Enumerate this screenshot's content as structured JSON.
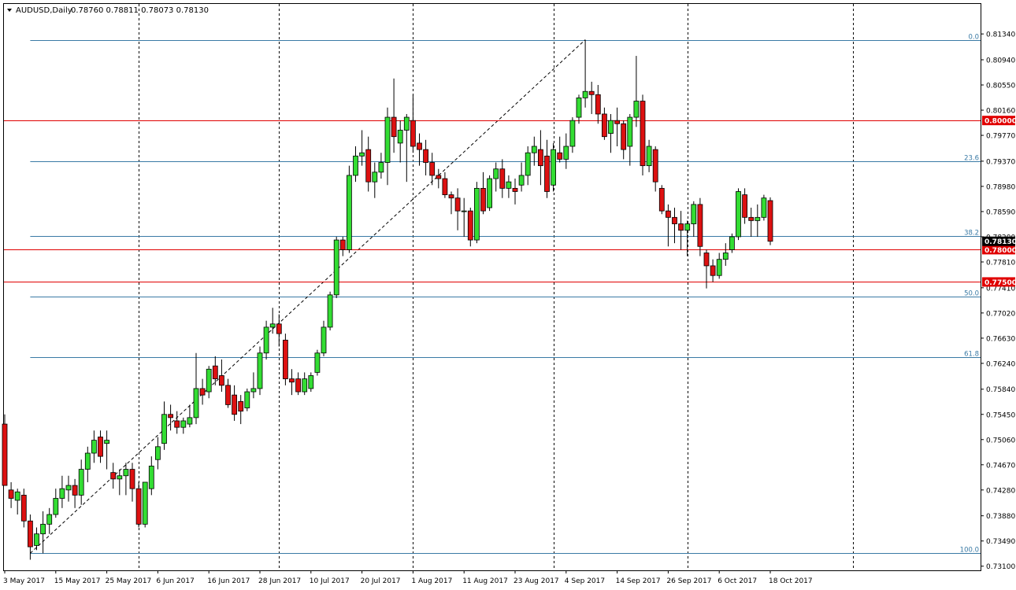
{
  "header": {
    "symbol": "AUDUSD,Daily",
    "ohlc": "0.78760 0.78811 0.78073 0.78130"
  },
  "colors": {
    "bull": "#33dd33",
    "bear": "#dd1111",
    "fib": "#3a7aa5",
    "level": "#e00000",
    "price_tag": "#000000"
  },
  "chart_data": {
    "type": "candlestick",
    "ylim": [
      0.7306,
      0.815
    ],
    "y_ticks": [
      "0.81340",
      "0.80940",
      "0.80550",
      "0.80160",
      "0.79770",
      "0.79370",
      "0.78980",
      "0.78590",
      "0.78200",
      "0.77810",
      "0.77410",
      "0.77020",
      "0.76630",
      "0.76240",
      "0.75840",
      "0.75450",
      "0.75060",
      "0.74670",
      "0.74280",
      "0.73880",
      "0.73490",
      "0.73100"
    ],
    "x_ticks": [
      "3 May 2017",
      "15 May 2017",
      "25 May 2017",
      "6 Jun 2017",
      "16 Jun 2017",
      "28 Jun 2017",
      "10 Jul 2017",
      "20 Jul 2017",
      "1 Aug 2017",
      "11 Aug 2017",
      "23 Aug 2017",
      "4 Sep 2017",
      "14 Sep 2017",
      "26 Sep 2017",
      "6 Oct 2017",
      "18 Oct 2017"
    ],
    "x_tick_bar_index": [
      0,
      8,
      16,
      24,
      32,
      40,
      48,
      56,
      64,
      72,
      80,
      88,
      96,
      104,
      112,
      120
    ],
    "separator_bar_index": [
      21,
      43,
      64,
      86,
      107,
      133
    ],
    "bar_count": 160,
    "horizontal_levels": [
      {
        "label": "0.80000",
        "price": 0.8
      },
      {
        "label": "0.78000",
        "price": 0.78
      },
      {
        "label": "0.77500",
        "price": 0.775
      }
    ],
    "current_price": {
      "label": "0.78130",
      "price": 0.7813
    },
    "fibonacci": {
      "high": 0.8125,
      "low": 0.733,
      "levels": [
        {
          "label": "0.0",
          "price": 0.8125
        },
        {
          "label": "23.6",
          "price": 0.79374
        },
        {
          "label": "38.2",
          "price": 0.78214
        },
        {
          "label": "50.0",
          "price": 0.77275
        },
        {
          "label": "61.8",
          "price": 0.76337
        },
        {
          "label": "100.0",
          "price": 0.733
        }
      ],
      "trendline": {
        "from_bar": 4,
        "to_bar": 91
      }
    },
    "candles": [
      [
        0.753,
        0.7545,
        0.744,
        0.7435
      ],
      [
        0.7428,
        0.744,
        0.74,
        0.7415
      ],
      [
        0.7412,
        0.743,
        0.739,
        0.7425
      ],
      [
        0.742,
        0.743,
        0.737,
        0.738
      ],
      [
        0.738,
        0.739,
        0.732,
        0.734
      ],
      [
        0.7342,
        0.737,
        0.7335,
        0.736
      ],
      [
        0.736,
        0.7395,
        0.733,
        0.7375
      ],
      [
        0.7375,
        0.74,
        0.736,
        0.739
      ],
      [
        0.739,
        0.743,
        0.7385,
        0.7415
      ],
      [
        0.7415,
        0.745,
        0.74,
        0.743
      ],
      [
        0.7428,
        0.745,
        0.741,
        0.7435
      ],
      [
        0.7435,
        0.7445,
        0.74,
        0.742
      ],
      [
        0.742,
        0.7475,
        0.7405,
        0.746
      ],
      [
        0.746,
        0.7495,
        0.744,
        0.7485
      ],
      [
        0.7485,
        0.752,
        0.747,
        0.7505
      ],
      [
        0.751,
        0.752,
        0.747,
        0.748
      ],
      [
        0.75,
        0.752,
        0.746,
        0.7505
      ],
      [
        0.7455,
        0.747,
        0.743,
        0.7445
      ],
      [
        0.7445,
        0.746,
        0.742,
        0.745
      ],
      [
        0.745,
        0.747,
        0.742,
        0.746
      ],
      [
        0.746,
        0.747,
        0.741,
        0.743
      ],
      [
        0.743,
        0.744,
        0.737,
        0.7375
      ],
      [
        0.7375,
        0.744,
        0.737,
        0.744
      ],
      [
        0.743,
        0.748,
        0.742,
        0.7465
      ],
      [
        0.7475,
        0.751,
        0.746,
        0.7495
      ],
      [
        0.75,
        0.7565,
        0.749,
        0.7545
      ],
      [
        0.7545,
        0.756,
        0.752,
        0.754
      ],
      [
        0.7535,
        0.755,
        0.7515,
        0.7525
      ],
      [
        0.7525,
        0.754,
        0.7515,
        0.7535
      ],
      [
        0.753,
        0.756,
        0.7525,
        0.754
      ],
      [
        0.754,
        0.764,
        0.753,
        0.7585
      ],
      [
        0.7585,
        0.76,
        0.756,
        0.7575
      ],
      [
        0.758,
        0.762,
        0.757,
        0.7615
      ],
      [
        0.762,
        0.7635,
        0.759,
        0.76
      ],
      [
        0.7605,
        0.763,
        0.758,
        0.759
      ],
      [
        0.759,
        0.76,
        0.7555,
        0.756
      ],
      [
        0.7575,
        0.759,
        0.7535,
        0.7545
      ],
      [
        0.7565,
        0.7575,
        0.753,
        0.755
      ],
      [
        0.7555,
        0.7585,
        0.755,
        0.758
      ],
      [
        0.758,
        0.761,
        0.757,
        0.7585
      ],
      [
        0.7585,
        0.765,
        0.7575,
        0.764
      ],
      [
        0.764,
        0.769,
        0.763,
        0.768
      ],
      [
        0.768,
        0.771,
        0.767,
        0.7685
      ],
      [
        0.7685,
        0.77,
        0.765,
        0.767
      ],
      [
        0.766,
        0.767,
        0.759,
        0.76
      ],
      [
        0.76,
        0.7615,
        0.7575,
        0.7595
      ],
      [
        0.76,
        0.761,
        0.7575,
        0.758
      ],
      [
        0.758,
        0.761,
        0.7575,
        0.76
      ],
      [
        0.7585,
        0.761,
        0.758,
        0.7605
      ],
      [
        0.761,
        0.7645,
        0.7605,
        0.764
      ],
      [
        0.764,
        0.769,
        0.7635,
        0.768
      ],
      [
        0.768,
        0.7735,
        0.7675,
        0.773
      ],
      [
        0.773,
        0.782,
        0.7725,
        0.7815
      ],
      [
        0.7815,
        0.782,
        0.779,
        0.78
      ],
      [
        0.78,
        0.793,
        0.7795,
        0.7915
      ],
      [
        0.7915,
        0.796,
        0.7905,
        0.7945
      ],
      [
        0.7945,
        0.7985,
        0.793,
        0.795
      ],
      [
        0.7955,
        0.7975,
        0.789,
        0.7905
      ],
      [
        0.7905,
        0.7935,
        0.788,
        0.792
      ],
      [
        0.792,
        0.795,
        0.791,
        0.7935
      ],
      [
        0.7935,
        0.802,
        0.79,
        0.8005
      ],
      [
        0.8005,
        0.8065,
        0.795,
        0.7975
      ],
      [
        0.7965,
        0.8,
        0.7935,
        0.7985
      ],
      [
        0.7985,
        0.801,
        0.7905,
        0.8005
      ],
      [
        0.8,
        0.804,
        0.795,
        0.796
      ],
      [
        0.7965,
        0.798,
        0.793,
        0.7955
      ],
      [
        0.7955,
        0.797,
        0.7915,
        0.7935
      ],
      [
        0.7935,
        0.795,
        0.79,
        0.7915
      ],
      [
        0.7915,
        0.7925,
        0.7895,
        0.791
      ],
      [
        0.791,
        0.792,
        0.788,
        0.7885
      ],
      [
        0.7885,
        0.789,
        0.7855,
        0.788
      ],
      [
        0.788,
        0.7895,
        0.783,
        0.786
      ],
      [
        0.786,
        0.788,
        0.782,
        0.786
      ],
      [
        0.786,
        0.7865,
        0.7805,
        0.7815
      ],
      [
        0.7815,
        0.7905,
        0.781,
        0.7895
      ],
      [
        0.7895,
        0.792,
        0.7855,
        0.786
      ],
      [
        0.7865,
        0.7915,
        0.786,
        0.791
      ],
      [
        0.791,
        0.7935,
        0.789,
        0.7925
      ],
      [
        0.7925,
        0.794,
        0.788,
        0.7895
      ],
      [
        0.7895,
        0.7915,
        0.788,
        0.7905
      ],
      [
        0.7895,
        0.791,
        0.787,
        0.789
      ],
      [
        0.79,
        0.7935,
        0.789,
        0.7915
      ],
      [
        0.7915,
        0.796,
        0.79,
        0.795
      ],
      [
        0.795,
        0.7975,
        0.793,
        0.796
      ],
      [
        0.7955,
        0.7985,
        0.79,
        0.793
      ],
      [
        0.7945,
        0.797,
        0.788,
        0.789
      ],
      [
        0.79,
        0.7965,
        0.789,
        0.7955
      ],
      [
        0.795,
        0.7975,
        0.7935,
        0.794
      ],
      [
        0.794,
        0.798,
        0.7925,
        0.796
      ],
      [
        0.796,
        0.8005,
        0.795,
        0.8
      ],
      [
        0.8005,
        0.804,
        0.7995,
        0.8035
      ],
      [
        0.8035,
        0.8125,
        0.802,
        0.8045
      ],
      [
        0.8045,
        0.806,
        0.801,
        0.804
      ],
      [
        0.804,
        0.8055,
        0.7995,
        0.801
      ],
      [
        0.801,
        0.802,
        0.797,
        0.7975
      ],
      [
        0.798,
        0.801,
        0.795,
        0.8
      ],
      [
        0.8,
        0.802,
        0.796,
        0.7995
      ],
      [
        0.7995,
        0.8,
        0.794,
        0.7955
      ],
      [
        0.796,
        0.801,
        0.793,
        0.8005
      ],
      [
        0.8005,
        0.81,
        0.799,
        0.803
      ],
      [
        0.803,
        0.804,
        0.7915,
        0.793
      ],
      [
        0.793,
        0.797,
        0.792,
        0.796
      ],
      [
        0.7955,
        0.796,
        0.789,
        0.7905
      ],
      [
        0.7895,
        0.79,
        0.7855,
        0.786
      ],
      [
        0.786,
        0.787,
        0.7805,
        0.785
      ],
      [
        0.785,
        0.7865,
        0.781,
        0.784
      ],
      [
        0.784,
        0.786,
        0.78,
        0.783
      ],
      [
        0.783,
        0.7845,
        0.779,
        0.784
      ],
      [
        0.784,
        0.7875,
        0.782,
        0.787
      ],
      [
        0.787,
        0.788,
        0.779,
        0.7805
      ],
      [
        0.7795,
        0.78,
        0.774,
        0.7775
      ],
      [
        0.7775,
        0.7785,
        0.775,
        0.776
      ],
      [
        0.776,
        0.7795,
        0.7755,
        0.7785
      ],
      [
        0.7785,
        0.781,
        0.7775,
        0.7795
      ],
      [
        0.78,
        0.7825,
        0.7795,
        0.782
      ],
      [
        0.782,
        0.7895,
        0.7815,
        0.789
      ],
      [
        0.7885,
        0.7895,
        0.784,
        0.785
      ],
      [
        0.785,
        0.7865,
        0.782,
        0.7845
      ],
      [
        0.7845,
        0.787,
        0.782,
        0.785
      ],
      [
        0.785,
        0.7885,
        0.7845,
        0.788
      ],
      [
        0.7876,
        0.7881,
        0.7807,
        0.7813
      ]
    ]
  }
}
